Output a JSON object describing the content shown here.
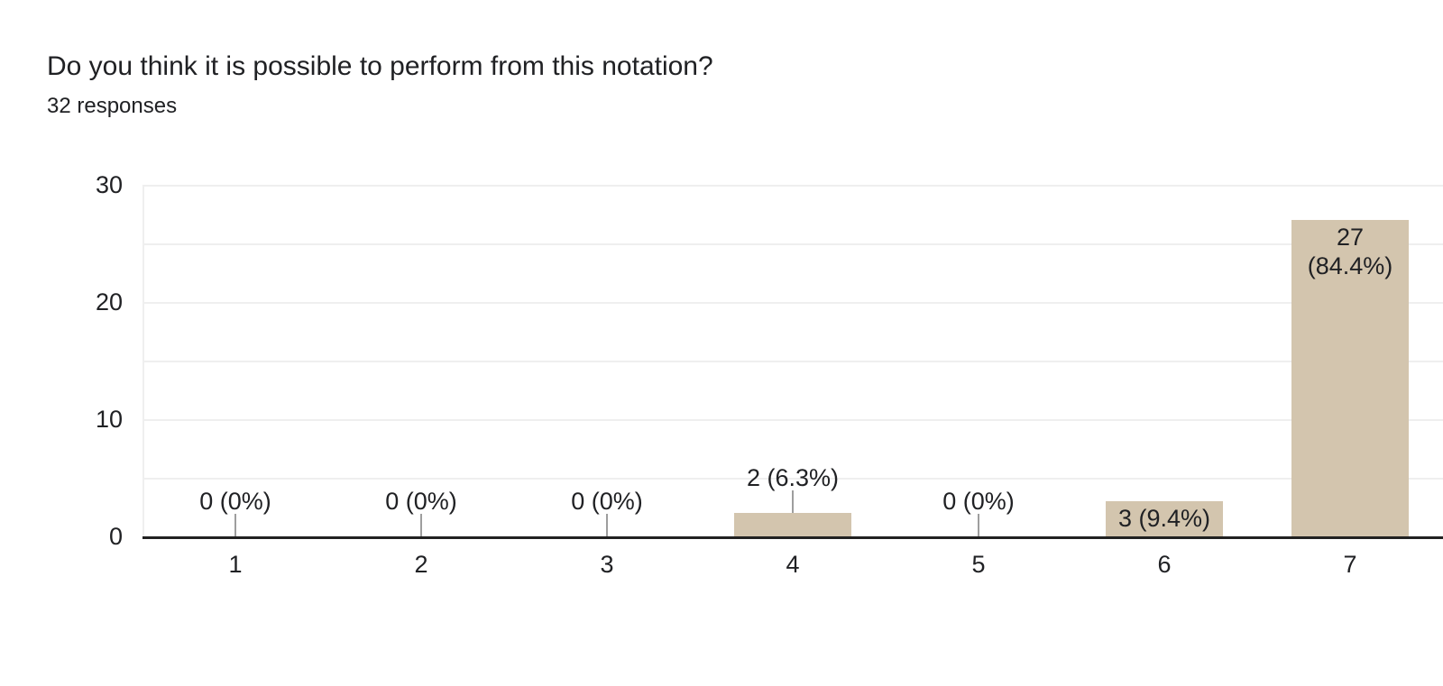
{
  "header": {
    "title": "Do you think it is possible to perform from this notation?",
    "subtitle": "32 responses"
  },
  "chart_data": {
    "type": "bar",
    "title": "Do you think it is possible to perform from this notation?",
    "subtitle": "32 responses",
    "categories": [
      "1",
      "2",
      "3",
      "4",
      "5",
      "6",
      "7"
    ],
    "values": [
      0,
      0,
      0,
      2,
      0,
      3,
      27
    ],
    "bar_labels": [
      [
        "0 (0%)"
      ],
      [
        "0 (0%)"
      ],
      [
        "0 (0%)"
      ],
      [
        "2 (6.3%)"
      ],
      [
        "0 (0%)"
      ],
      [
        "3 (9.4%)"
      ],
      [
        "27",
        "(84.4%)"
      ]
    ],
    "xlabel": "",
    "ylabel": "",
    "ylim": [
      0,
      30
    ],
    "yticks": [
      {
        "value": 0,
        "label": "0"
      },
      {
        "value": 10,
        "label": "10"
      },
      {
        "value": 20,
        "label": "20"
      },
      {
        "value": 30,
        "label": "30"
      }
    ],
    "gridline_step": 5,
    "grid": true,
    "legend": "none",
    "colors": {
      "bar": "#d3c5ae",
      "axis_line": "#212121",
      "gridline": "#efefef",
      "stem": "#9e9e9e",
      "text": "#202124"
    }
  }
}
